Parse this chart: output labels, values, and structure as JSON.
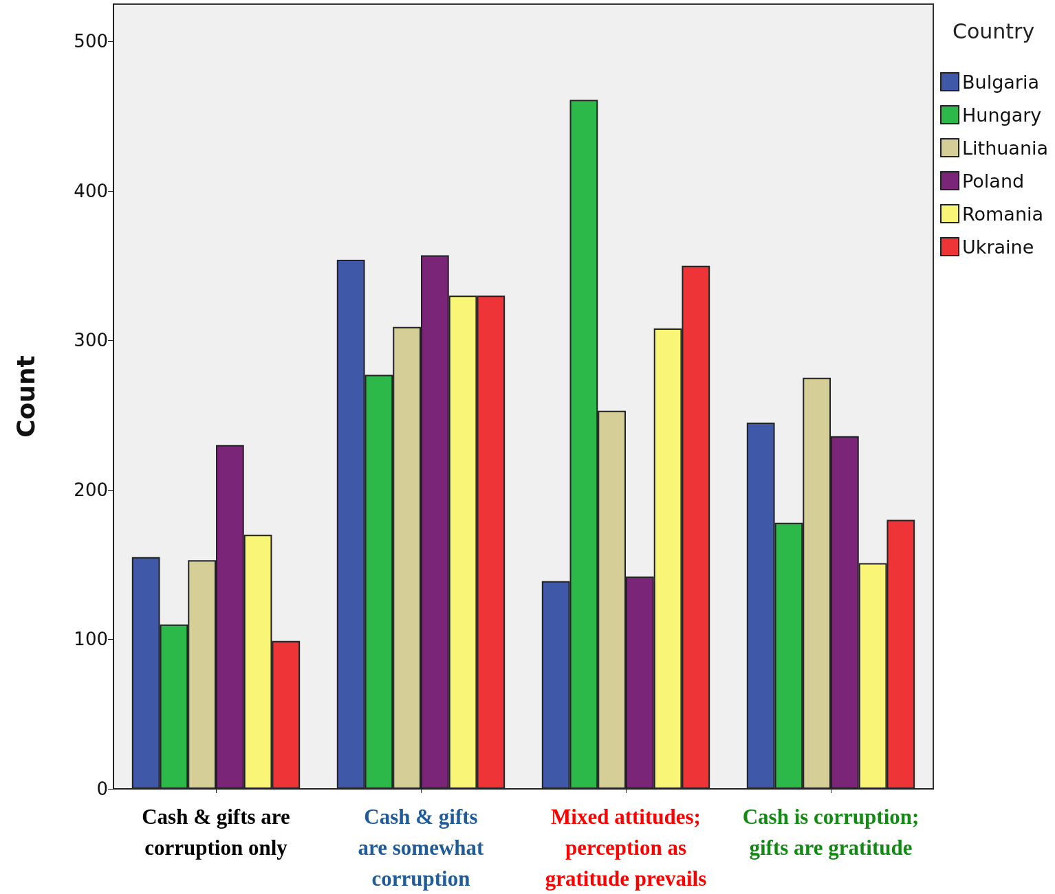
{
  "chart_data": {
    "type": "bar",
    "ylabel": "Count",
    "legend_title": "Country",
    "categories": [
      "Cash & gifts are\ncorruption only",
      "Cash & gifts\nare somewhat\ncorruption",
      "Mixed attitudes;\nperception as\ngratitude prevails",
      "Cash is corruption;\ngifts are gratitude"
    ],
    "series": [
      {
        "name": "Bulgaria",
        "color": "#3f58a8",
        "values": [
          155,
          354,
          139,
          245
        ]
      },
      {
        "name": "Hungary",
        "color": "#2db84a",
        "values": [
          110,
          277,
          461,
          178
        ]
      },
      {
        "name": "Lithuania",
        "color": "#d5cf97",
        "values": [
          153,
          309,
          253,
          275
        ]
      },
      {
        "name": "Poland",
        "color": "#7b2579",
        "values": [
          230,
          357,
          142,
          236
        ]
      },
      {
        "name": "Romania",
        "color": "#f9f677",
        "values": [
          170,
          330,
          308,
          151
        ]
      },
      {
        "name": "Ukraine",
        "color": "#ef3438",
        "values": [
          99,
          330,
          350,
          180
        ]
      }
    ],
    "ylim": [
      0,
      525
    ],
    "yticks": [
      0,
      100,
      200,
      300,
      400,
      500
    ],
    "grid": false,
    "legend": "right"
  }
}
